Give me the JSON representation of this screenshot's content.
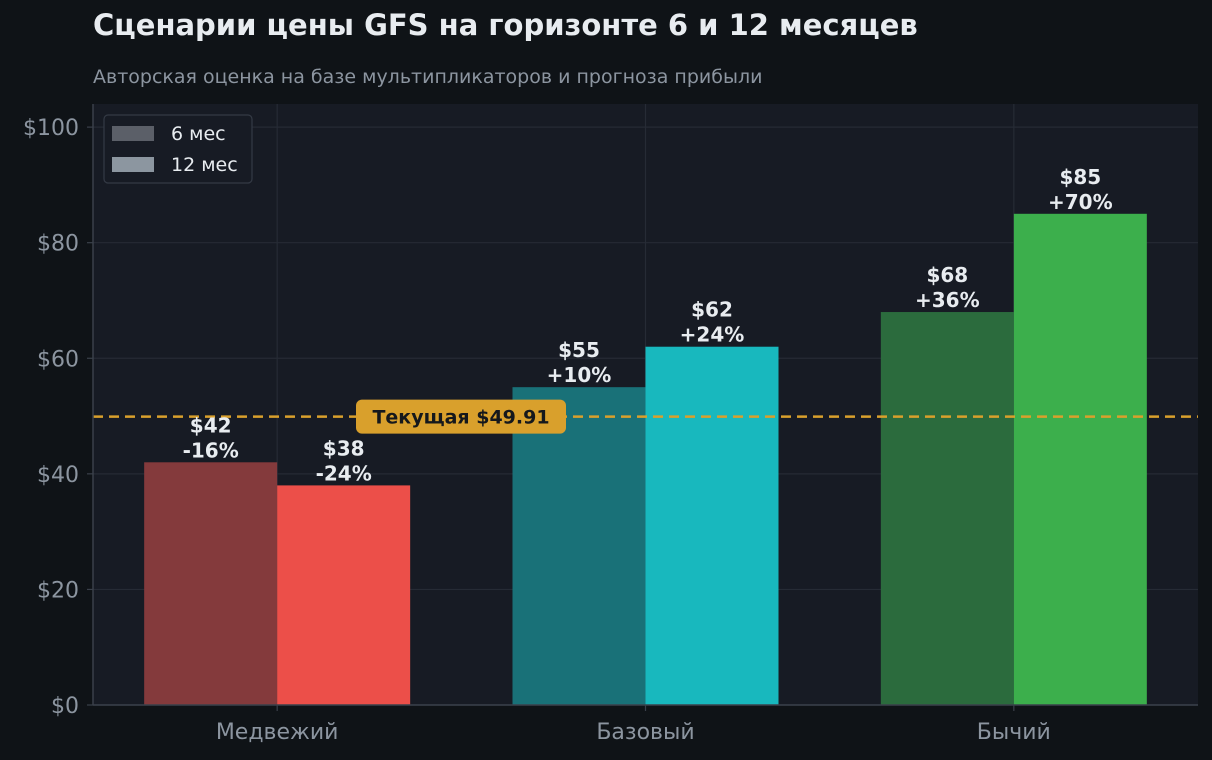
{
  "chart_data": {
    "type": "bar",
    "title": "Сценарии цены GFS на горизонте 6 и 12 месяцев",
    "subtitle": "Авторская оценка на базе мультипликаторов и прогноза прибыли",
    "categories": [
      "Медвежий",
      "Базовый",
      "Бычий"
    ],
    "series": [
      {
        "name": "6 мес",
        "values": [
          42,
          55,
          68
        ],
        "labels": [
          "$42",
          "$55",
          "$68"
        ],
        "changes": [
          "-16%",
          "+10%",
          "+36%"
        ],
        "colors": [
          "#843a3c",
          "#197178",
          "#2b6b3d"
        ]
      },
      {
        "name": "12 мес",
        "values": [
          38,
          62,
          85
        ],
        "labels": [
          "$38",
          "$62",
          "$85"
        ],
        "changes": [
          "-24%",
          "+24%",
          "+70%"
        ],
        "colors": [
          "#ec4f49",
          "#18b8be",
          "#3caf4c"
        ]
      }
    ],
    "ylim": [
      0,
      104
    ],
    "yticks": [
      0,
      20,
      40,
      60,
      80,
      100
    ],
    "ytick_labels": [
      "$0",
      "$20",
      "$40",
      "$60",
      "$80",
      "$100"
    ],
    "reference_line": {
      "value": 49.91,
      "label": "Текущая $49.91",
      "color": "#d9a02c"
    },
    "legend": {
      "position": "top-left",
      "entries": [
        "6 мес",
        "12 мес"
      ],
      "colors": [
        "#5b5f68",
        "#8c96a0"
      ]
    },
    "grid": true
  }
}
